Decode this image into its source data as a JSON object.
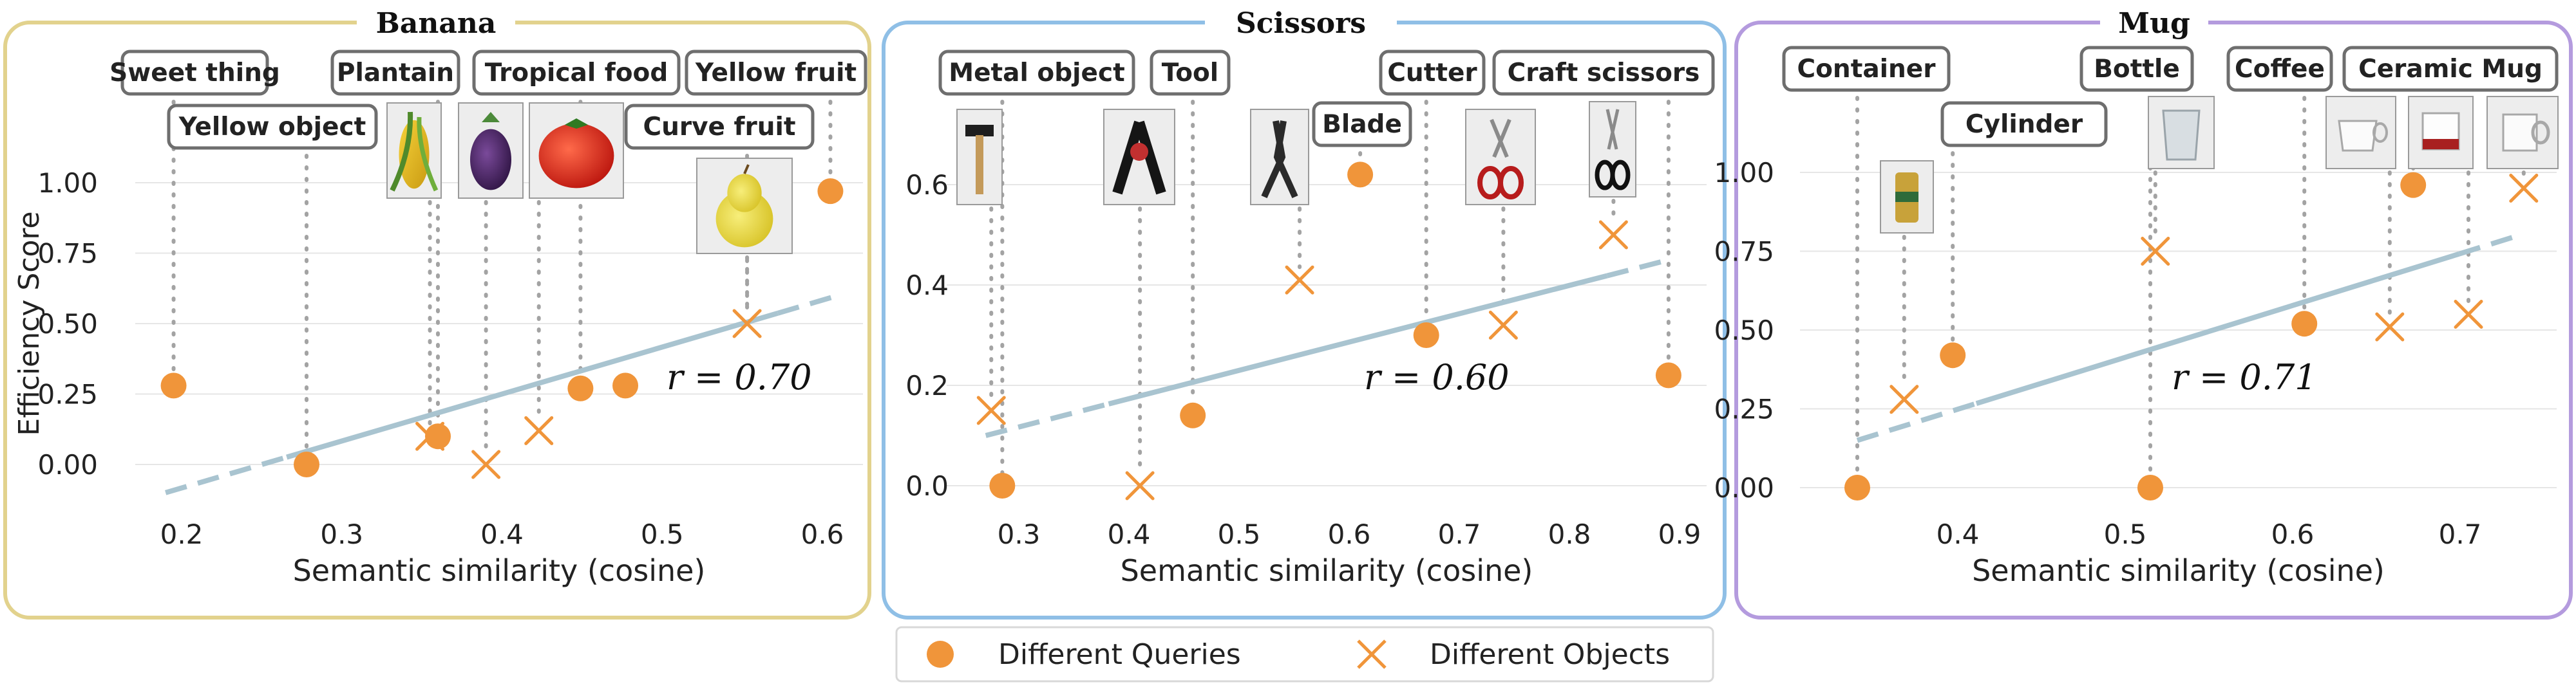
{
  "legend": [
    {
      "label": "Different Queries",
      "marker": "circle"
    },
    {
      "label": "Different Objects",
      "marker": "cross"
    }
  ],
  "colors": {
    "marker": "#F0953A",
    "trend": "#A9C4D0",
    "dotted": "#A3A3A3",
    "panel_borders": [
      "#E2D28D",
      "#8FBFE6",
      "#B49BDE"
    ]
  },
  "chart_data": [
    {
      "type": "scatter",
      "title": "Banana",
      "xlabel": "Semantic similarity (cosine)",
      "ylabel": "Efficiency Score",
      "xlim": [
        0.17,
        0.63
      ],
      "ylim": [
        -0.12,
        1.15
      ],
      "xticks": [
        0.2,
        0.3,
        0.4,
        0.5,
        0.6
      ],
      "xtick_labels": [
        "0.2",
        "0.3",
        "0.4",
        "0.5",
        "0.6"
      ],
      "yticks": [
        0.0,
        0.25,
        0.5,
        0.75,
        1.0
      ],
      "ytick_labels": [
        "0.00",
        "0.25",
        "0.50",
        "0.75",
        "1.00"
      ],
      "grid": true,
      "r_label": "r = 0.70",
      "trend": {
        "x": [
          0.19,
          0.61
        ],
        "y": [
          -0.1,
          0.6
        ]
      },
      "series": [
        {
          "name": "Different Queries",
          "marker": "circle",
          "points": [
            [
              0.195,
              0.28
            ],
            [
              0.278,
              0.0
            ],
            [
              0.36,
              0.1
            ],
            [
              0.449,
              0.27
            ],
            [
              0.477,
              0.28
            ],
            [
              0.605,
              0.97
            ]
          ]
        },
        {
          "name": "Different Objects",
          "marker": "cross",
          "points": [
            [
              0.355,
              0.1
            ],
            [
              0.39,
              0.0
            ],
            [
              0.423,
              0.12
            ],
            [
              0.553,
              0.5
            ]
          ]
        }
      ],
      "annotations": [
        {
          "text": "Sweet thing",
          "x": 0.195
        },
        {
          "text": "Yellow object",
          "x": 0.278
        },
        {
          "text": "Plantain",
          "x": 0.36
        },
        {
          "text": "Tropical food",
          "x": 0.449
        },
        {
          "text": "Curve fruit",
          "x": 0.553
        },
        {
          "text": "Yellow fruit",
          "x": 0.605
        }
      ],
      "thumbnails": [
        {
          "icon": "corn-photo",
          "x": 0.355
        },
        {
          "icon": "eggplant-photo",
          "x": 0.39
        },
        {
          "icon": "tomato-photo",
          "x": 0.423
        },
        {
          "icon": "pear-photo",
          "x": 0.553
        }
      ]
    },
    {
      "type": "scatter",
      "title": "Scissors",
      "xlabel": "Semantic similarity (cosine)",
      "ylabel": "",
      "xlim": [
        0.255,
        0.91
      ],
      "ylim": [
        -0.04,
        0.71
      ],
      "xticks": [
        0.3,
        0.4,
        0.5,
        0.6,
        0.7,
        0.8,
        0.9
      ],
      "xtick_labels": [
        "0.3",
        "0.4",
        "0.5",
        "0.6",
        "0.7",
        "0.8",
        "0.9"
      ],
      "yticks": [
        0.0,
        0.2,
        0.4,
        0.6
      ],
      "ytick_labels": [
        "0.0",
        "0.2",
        "0.4",
        "0.6"
      ],
      "grid": true,
      "r_label": "r = 0.60",
      "trend": {
        "x": [
          0.27,
          0.89
        ],
        "y": [
          0.1,
          0.45
        ]
      },
      "series": [
        {
          "name": "Different Queries",
          "marker": "circle",
          "points": [
            [
              0.285,
              0.0
            ],
            [
              0.458,
              0.14
            ],
            [
              0.61,
              0.62
            ],
            [
              0.67,
              0.3
            ],
            [
              0.89,
              0.22
            ]
          ]
        },
        {
          "name": "Different Objects",
          "marker": "cross",
          "points": [
            [
              0.275,
              0.15
            ],
            [
              0.41,
              0.0
            ],
            [
              0.555,
              0.41
            ],
            [
              0.74,
              0.32
            ],
            [
              0.84,
              0.5
            ]
          ]
        }
      ],
      "annotations": [
        {
          "text": "Metal object",
          "x": 0.285
        },
        {
          "text": "Tool",
          "x": 0.458
        },
        {
          "text": "Blade",
          "x": 0.61
        },
        {
          "text": "Cutter",
          "x": 0.67
        },
        {
          "text": "Craft scissors",
          "x": 0.89
        }
      ],
      "thumbnails": [
        {
          "icon": "hammer-photo",
          "x": 0.275
        },
        {
          "icon": "clamp-photo",
          "x": 0.41
        },
        {
          "icon": "pliers-photo",
          "x": 0.555
        },
        {
          "icon": "red-scissors-photo",
          "x": 0.74
        },
        {
          "icon": "black-scissors-photo",
          "x": 0.84
        }
      ]
    },
    {
      "type": "scatter",
      "title": "Mug",
      "xlabel": "Semantic similarity (cosine)",
      "ylabel": "",
      "xlim": [
        0.325,
        0.75
      ],
      "ylim": [
        -0.06,
        1.08
      ],
      "xticks": [
        0.4,
        0.5,
        0.6,
        0.7
      ],
      "xtick_labels": [
        "0.4",
        "0.5",
        "0.6",
        "0.7"
      ],
      "yticks": [
        0.0,
        0.25,
        0.5,
        0.75,
        1.0
      ],
      "ytick_labels": [
        "0.00",
        "0.25",
        "0.50",
        "0.75",
        "1.00"
      ],
      "grid": true,
      "r_label": "r = 0.71",
      "trend": {
        "x": [
          0.34,
          0.735
        ],
        "y": [
          0.15,
          0.8
        ]
      },
      "series": [
        {
          "name": "Different Queries",
          "marker": "circle",
          "points": [
            [
              0.34,
              0.0
            ],
            [
              0.397,
              0.42
            ],
            [
              0.515,
              0.0
            ],
            [
              0.607,
              0.52
            ],
            [
              0.672,
              0.96
            ]
          ]
        },
        {
          "name": "Different Objects",
          "marker": "cross",
          "points": [
            [
              0.368,
              0.28
            ],
            [
              0.518,
              0.75
            ],
            [
              0.658,
              0.51
            ],
            [
              0.705,
              0.55
            ],
            [
              0.738,
              0.95
            ]
          ]
        }
      ],
      "annotations": [
        {
          "text": "Container",
          "x": 0.34
        },
        {
          "text": "Cylinder",
          "x": 0.397
        },
        {
          "text": "Bottle",
          "x": 0.515
        },
        {
          "text": "Coffee",
          "x": 0.607
        },
        {
          "text": "Ceramic Mug",
          "x": 0.672
        }
      ],
      "thumbnails": [
        {
          "icon": "can-photo",
          "x": 0.368
        },
        {
          "icon": "glass-cup-photo",
          "x": 0.518
        },
        {
          "icon": "white-cup-photo",
          "x": 0.658
        },
        {
          "icon": "red-mug-photo",
          "x": 0.705
        },
        {
          "icon": "white-mug-photo",
          "x": 0.738
        }
      ]
    }
  ]
}
